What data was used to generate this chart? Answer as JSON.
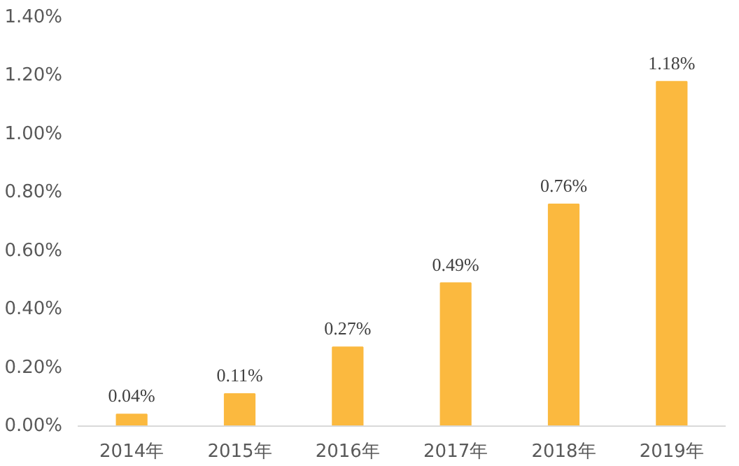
{
  "chart_data": {
    "type": "bar",
    "categories": [
      "2014年",
      "2015年",
      "2016年",
      "2017年",
      "2018年",
      "2019年"
    ],
    "values": [
      0.04,
      0.11,
      0.27,
      0.49,
      0.76,
      1.18
    ],
    "value_labels": [
      "0.04%",
      "0.11%",
      "0.27%",
      "0.49%",
      "0.76%",
      "1.18%"
    ],
    "color": "#fbb93f",
    "ylim": [
      0,
      1.4
    ],
    "yticks": [
      {
        "value": 0,
        "label": "0.00%"
      },
      {
        "value": 0.2,
        "label": "0.20%"
      },
      {
        "value": 0.4,
        "label": "0.40%"
      },
      {
        "value": 0.6,
        "label": "0.60%"
      },
      {
        "value": 0.8,
        "label": "0.80%"
      },
      {
        "value": 1.0,
        "label": "1.00%"
      },
      {
        "value": 1.2,
        "label": "1.20%"
      },
      {
        "value": 1.4,
        "label": "1.40%"
      }
    ],
    "grid": false
  }
}
